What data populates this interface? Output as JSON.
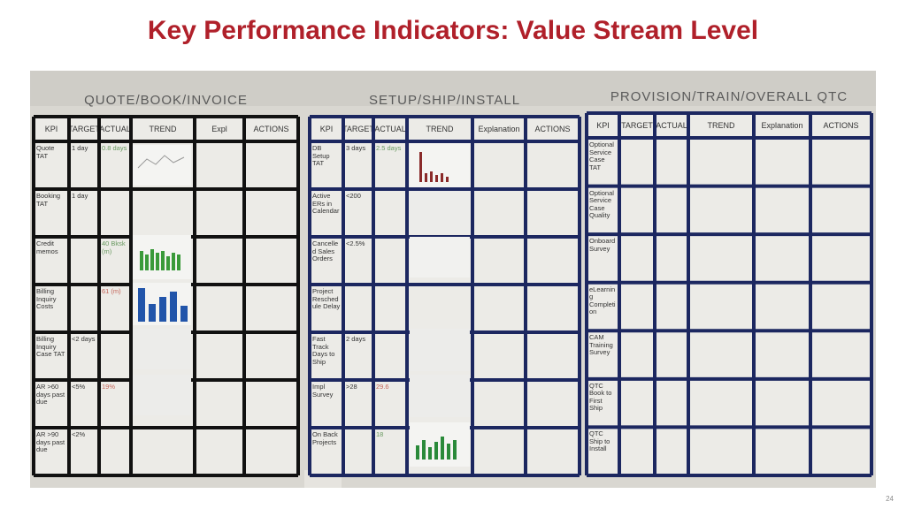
{
  "title": "Key Performance Indicators: Value Stream Level",
  "page_number": "24",
  "boards": [
    {
      "heading": "QUOTE/BOOK/INVOICE",
      "columns": [
        "KPI",
        "TARGET",
        "ACTUAL",
        "TREND",
        "Expl",
        "ACTIONS"
      ],
      "rows": [
        {
          "kpi": "Quote TAT",
          "target": "1 day",
          "actual": "0.8 days"
        },
        {
          "kpi": "Booking TAT",
          "target": "1 day"
        },
        {
          "kpi": "Credit memos",
          "actual": "40 Bksk (m)"
        },
        {
          "kpi": "Billing Inquiry Costs",
          "actual": "61 (m)"
        },
        {
          "kpi": "Billing Inquiry Case TAT",
          "target": "<2 days"
        },
        {
          "kpi": "AR >60 days past due",
          "target": "<5%",
          "actual": "19%"
        },
        {
          "kpi": "AR >90 days past due",
          "target": "<2%"
        }
      ]
    },
    {
      "heading": "SETUP/SHIP/INSTALL",
      "columns": [
        "KPI",
        "TARGET",
        "ACTUAL",
        "TREND",
        "Explanation",
        "ACTIONS"
      ],
      "rows": [
        {
          "kpi": "DB Setup TAT",
          "target": "3 days",
          "actual": "2.5 days"
        },
        {
          "kpi": "Active ERs in Calendar",
          "target": "<200"
        },
        {
          "kpi": "Cancelled Sales Orders",
          "target": "<2.5%"
        },
        {
          "kpi": "Project Reschedule Delay"
        },
        {
          "kpi": "Fast Track Days to Ship",
          "target": "2 days"
        },
        {
          "kpi": "Impl Survey",
          "target": ">28",
          "actual": "29.6"
        },
        {
          "kpi": "On Back Projects",
          "actual": "18"
        }
      ]
    },
    {
      "heading": "PROVISION/TRAIN/OVERALL QTC",
      "columns": [
        "KPI",
        "TARGET",
        "ACTUAL",
        "TREND",
        "Explanation",
        "ACTIONS"
      ],
      "rows": [
        {
          "kpi": "Optional Service Case TAT"
        },
        {
          "kpi": "Optional Service Case Quality"
        },
        {
          "kpi": "Onboard Survey"
        },
        {
          "kpi": "eLearning Completion"
        },
        {
          "kpi": "CAM Training Survey"
        },
        {
          "kpi": "QTC Book to First Ship"
        },
        {
          "kpi": "QTC Ship to Install"
        }
      ]
    }
  ]
}
